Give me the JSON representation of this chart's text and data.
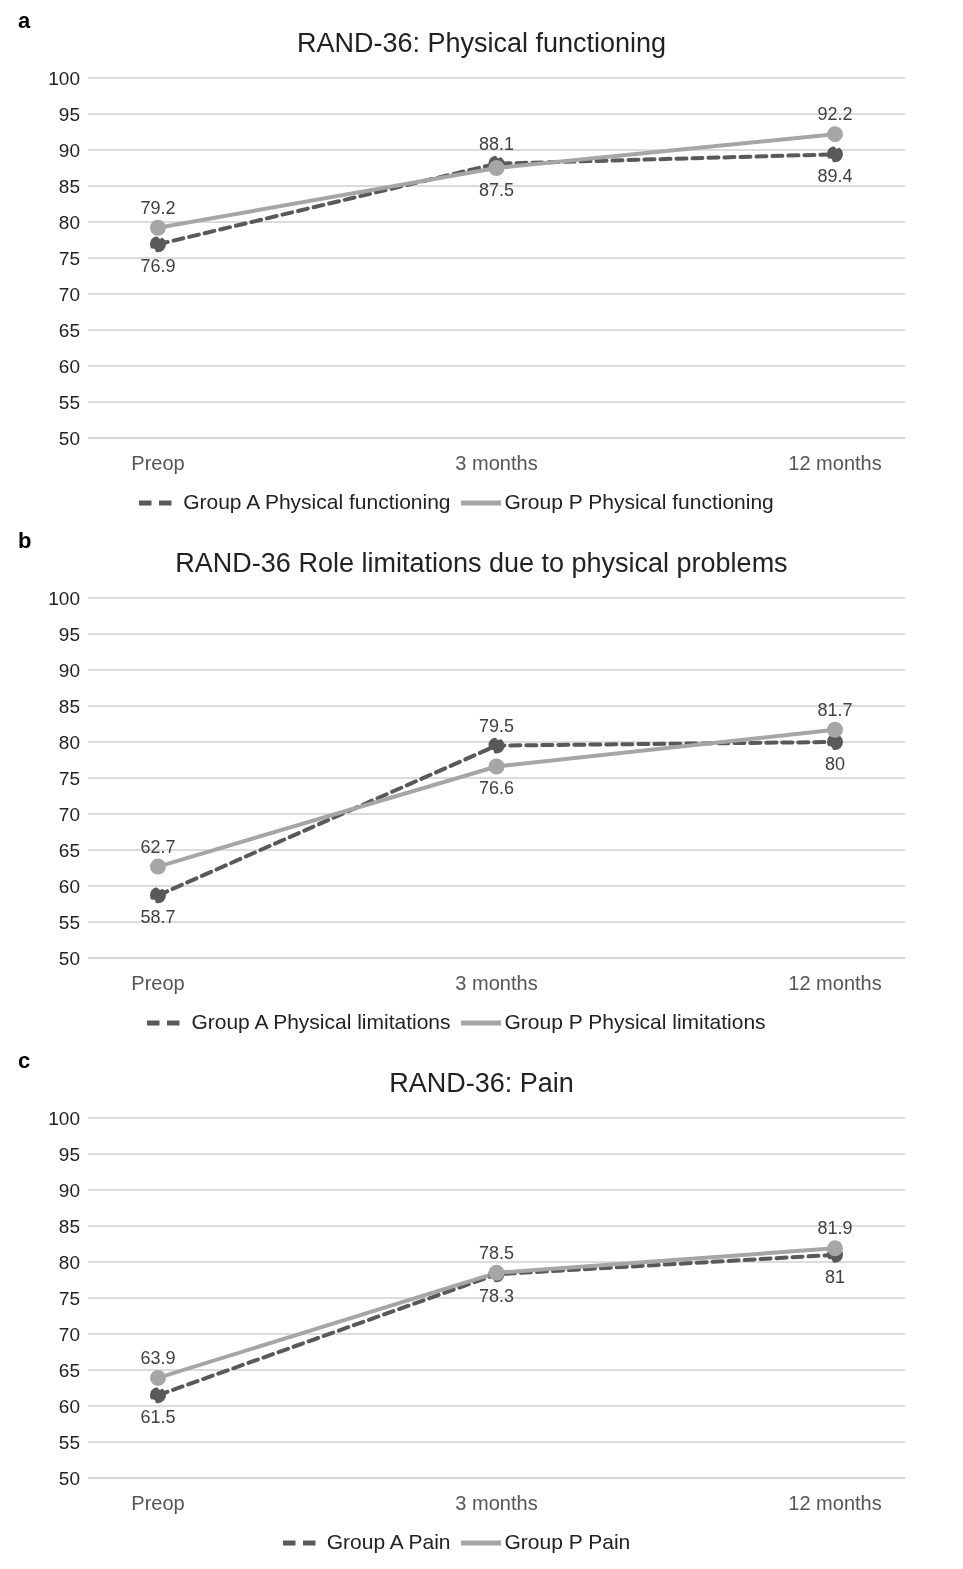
{
  "chart_data": [
    {
      "type": "line",
      "title": "RAND-36: Physical functioning",
      "annotations": [
        "a"
      ],
      "categories": [
        "Preop",
        "3 months",
        "12 months"
      ],
      "series": [
        {
          "name": "Group A Physical functioning",
          "color": "#595959",
          "line_style": "dashed",
          "values": [
            76.9,
            88.1,
            89.4
          ]
        },
        {
          "name": "Group P Physical functioning",
          "color": "#a6a6a6",
          "line_style": "solid",
          "values": [
            79.2,
            87.5,
            92.2
          ]
        }
      ],
      "ylim": [
        50,
        100
      ],
      "yticks": [
        50,
        55,
        60,
        65,
        70,
        75,
        80,
        85,
        90,
        95,
        100
      ],
      "grid": "y",
      "legend": "bottom",
      "marker": "circle",
      "data_labels": true
    },
    {
      "type": "line",
      "title": "RAND-36 Role limitations due to physical problems",
      "annotations": [
        "b"
      ],
      "categories": [
        "Preop",
        "3 months",
        "12 months"
      ],
      "series": [
        {
          "name": "Group A Physical limitations",
          "color": "#595959",
          "line_style": "dashed",
          "values": [
            58.7,
            79.5,
            80
          ]
        },
        {
          "name": "Group P Physical limitations",
          "color": "#a6a6a6",
          "line_style": "solid",
          "values": [
            62.7,
            76.6,
            81.7
          ]
        }
      ],
      "ylim": [
        50,
        100
      ],
      "yticks": [
        50,
        55,
        60,
        65,
        70,
        75,
        80,
        85,
        90,
        95,
        100
      ],
      "grid": "y",
      "legend": "bottom",
      "marker": "circle",
      "data_labels": true
    },
    {
      "type": "line",
      "title": "RAND-36: Pain",
      "annotations": [
        "c"
      ],
      "categories": [
        "Preop",
        "3 months",
        "12 months"
      ],
      "series": [
        {
          "name": "Group A Pain",
          "color": "#595959",
          "line_style": "dashed",
          "values": [
            61.5,
            78.3,
            81
          ]
        },
        {
          "name": "Group P Pain",
          "color": "#a6a6a6",
          "line_style": "solid",
          "values": [
            63.9,
            78.5,
            81.9
          ]
        }
      ],
      "ylim": [
        50,
        100
      ],
      "yticks": [
        50,
        55,
        60,
        65,
        70,
        75,
        80,
        85,
        90,
        95,
        100
      ],
      "grid": "y",
      "legend": "bottom",
      "marker": "circle",
      "data_labels": true
    }
  ]
}
